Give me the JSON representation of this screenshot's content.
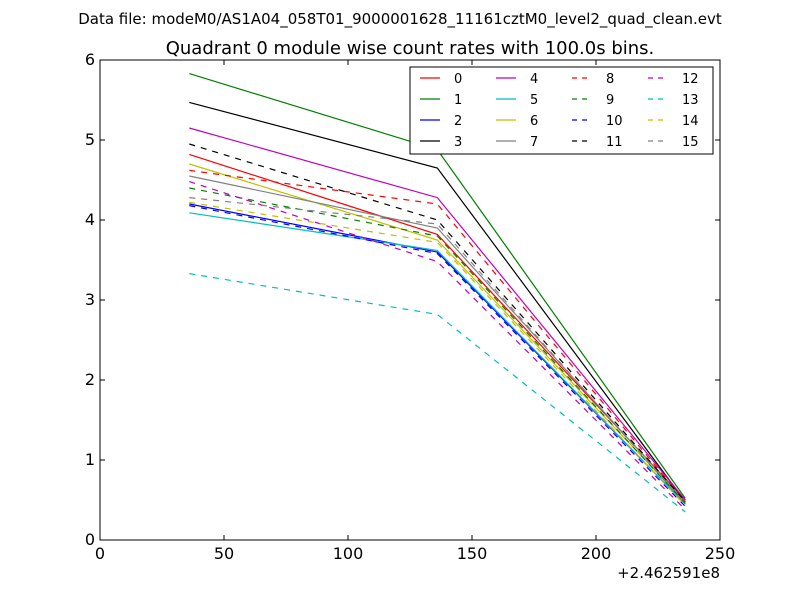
{
  "figure": {
    "title": "Data file: modeM0/AS1A04_058T01_9000001628_11161cztM0_level2_quad_clean.evt"
  },
  "chart_data": {
    "type": "line",
    "title": "Quadrant 0 module wise count rates with 100.0s bins.",
    "xlabel": "",
    "ylabel": "",
    "x_offset_label": "+2.462591e8",
    "xlim": [
      0,
      250
    ],
    "ylim": [
      0,
      6
    ],
    "x_ticks": [
      0,
      50,
      100,
      150,
      200,
      250
    ],
    "y_ticks": [
      0,
      1,
      2,
      3,
      4,
      5,
      6
    ],
    "x": [
      36,
      136,
      236
    ],
    "legend_location": "upper right",
    "legend_columns": 4,
    "series": [
      {
        "name": "0",
        "color": "#ff0000",
        "dash": "solid",
        "values": [
          4.82,
          3.82,
          0.5
        ]
      },
      {
        "name": "1",
        "color": "#008000",
        "dash": "solid",
        "values": [
          5.83,
          4.88,
          0.52
        ]
      },
      {
        "name": "2",
        "color": "#0000ff",
        "dash": "solid",
        "values": [
          4.2,
          3.6,
          0.45
        ]
      },
      {
        "name": "3",
        "color": "#000000",
        "dash": "solid",
        "values": [
          5.47,
          4.65,
          0.48
        ]
      },
      {
        "name": "4",
        "color": "#bf00bf",
        "dash": "solid",
        "values": [
          5.15,
          4.28,
          0.5
        ]
      },
      {
        "name": "5",
        "color": "#00bfbf",
        "dash": "solid",
        "values": [
          4.09,
          3.62,
          0.45
        ]
      },
      {
        "name": "6",
        "color": "#bfbf00",
        "dash": "solid",
        "values": [
          4.7,
          3.75,
          0.47
        ]
      },
      {
        "name": "7",
        "color": "#808080",
        "dash": "solid",
        "values": [
          4.55,
          3.9,
          0.48
        ]
      },
      {
        "name": "8",
        "color": "#ff0000",
        "dash": "dashed",
        "values": [
          4.62,
          4.2,
          0.48
        ]
      },
      {
        "name": "9",
        "color": "#008000",
        "dash": "dashed",
        "values": [
          4.4,
          3.8,
          0.46
        ]
      },
      {
        "name": "10",
        "color": "#0000ff",
        "dash": "dashed",
        "values": [
          4.18,
          3.58,
          0.42
        ]
      },
      {
        "name": "11",
        "color": "#000000",
        "dash": "dashed",
        "values": [
          4.95,
          4.0,
          0.48
        ]
      },
      {
        "name": "12",
        "color": "#bf00bf",
        "dash": "dashed",
        "values": [
          4.48,
          3.48,
          0.38
        ]
      },
      {
        "name": "13",
        "color": "#00bfbf",
        "dash": "dashed",
        "values": [
          3.33,
          2.82,
          0.35
        ]
      },
      {
        "name": "14",
        "color": "#bfbf00",
        "dash": "dashed",
        "values": [
          4.22,
          3.72,
          0.43
        ]
      },
      {
        "name": "15",
        "color": "#808080",
        "dash": "dashed",
        "values": [
          4.28,
          3.95,
          0.45
        ]
      }
    ]
  }
}
